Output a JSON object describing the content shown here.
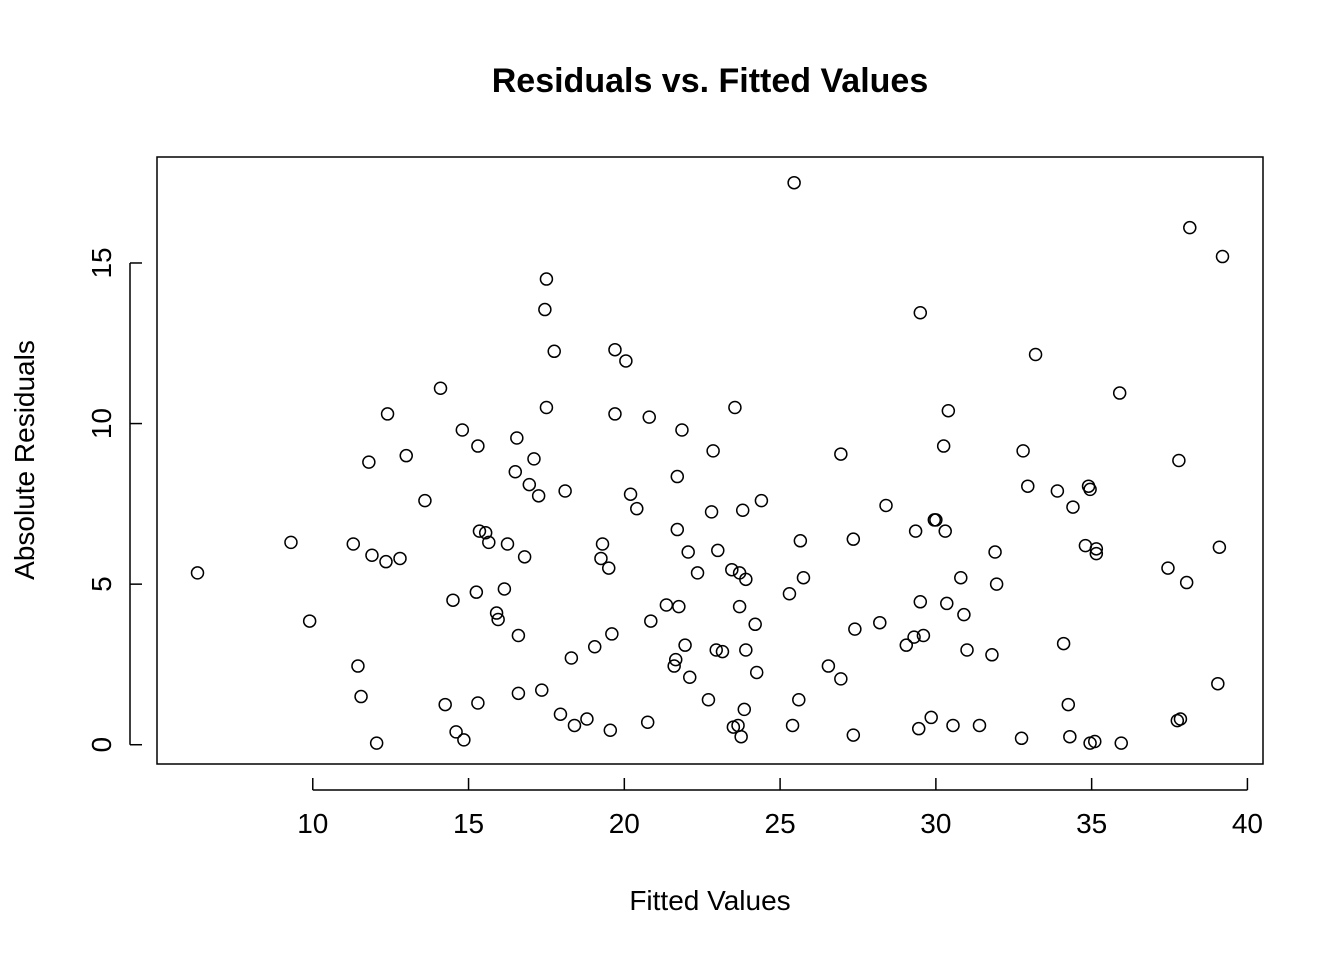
{
  "chart_data": {
    "type": "scatter",
    "title": "Residuals vs. Fitted Values",
    "xlabel": "Fitted Values",
    "ylabel": "Absolute Residuals",
    "xlim": [
      5,
      40.5
    ],
    "ylim": [
      -0.6,
      18.3
    ],
    "xticks": [
      10,
      15,
      20,
      25,
      30,
      35,
      40
    ],
    "yticks": [
      0,
      5,
      10,
      15
    ],
    "grid": false,
    "marker": "open-circle",
    "points": [
      [
        6.3,
        5.35
      ],
      [
        9.3,
        6.3
      ],
      [
        9.9,
        3.85
      ],
      [
        11.3,
        6.25
      ],
      [
        11.45,
        2.45
      ],
      [
        11.55,
        1.5
      ],
      [
        11.8,
        8.8
      ],
      [
        11.9,
        5.9
      ],
      [
        12.05,
        0.05
      ],
      [
        12.35,
        5.7
      ],
      [
        12.4,
        10.3
      ],
      [
        12.8,
        5.8
      ],
      [
        13.0,
        9.0
      ],
      [
        13.6,
        7.6
      ],
      [
        14.1,
        11.1
      ],
      [
        14.25,
        1.25
      ],
      [
        14.5,
        4.5
      ],
      [
        14.6,
        0.4
      ],
      [
        14.8,
        9.8
      ],
      [
        14.85,
        0.15
      ],
      [
        15.25,
        4.75
      ],
      [
        15.3,
        9.3
      ],
      [
        15.3,
        1.3
      ],
      [
        15.35,
        6.65
      ],
      [
        15.55,
        6.6
      ],
      [
        15.65,
        6.3
      ],
      [
        15.9,
        4.1
      ],
      [
        15.95,
        3.9
      ],
      [
        16.15,
        4.85
      ],
      [
        16.25,
        6.25
      ],
      [
        16.5,
        8.5
      ],
      [
        16.55,
        9.55
      ],
      [
        16.6,
        3.4
      ],
      [
        16.6,
        1.6
      ],
      [
        16.8,
        5.85
      ],
      [
        16.95,
        8.1
      ],
      [
        17.1,
        8.9
      ],
      [
        17.25,
        7.75
      ],
      [
        17.35,
        1.7
      ],
      [
        17.45,
        13.55
      ],
      [
        17.5,
        14.5
      ],
      [
        17.5,
        10.5
      ],
      [
        17.75,
        12.25
      ],
      [
        17.95,
        0.95
      ],
      [
        18.1,
        7.9
      ],
      [
        18.3,
        2.7
      ],
      [
        18.4,
        0.6
      ],
      [
        18.8,
        0.8
      ],
      [
        19.05,
        3.05
      ],
      [
        19.25,
        5.8
      ],
      [
        19.3,
        6.25
      ],
      [
        19.5,
        5.5
      ],
      [
        19.55,
        0.45
      ],
      [
        19.6,
        3.45
      ],
      [
        19.7,
        12.3
      ],
      [
        19.7,
        10.3
      ],
      [
        20.05,
        11.95
      ],
      [
        20.2,
        7.8
      ],
      [
        20.4,
        7.35
      ],
      [
        20.75,
        0.7
      ],
      [
        20.8,
        10.2
      ],
      [
        20.85,
        3.85
      ],
      [
        21.35,
        4.35
      ],
      [
        21.6,
        2.45
      ],
      [
        21.65,
        2.65
      ],
      [
        21.7,
        6.7
      ],
      [
        21.7,
        8.35
      ],
      [
        21.75,
        4.3
      ],
      [
        21.85,
        9.8
      ],
      [
        21.95,
        3.1
      ],
      [
        22.05,
        6.0
      ],
      [
        22.1,
        2.1
      ],
      [
        22.35,
        5.35
      ],
      [
        22.7,
        1.4
      ],
      [
        22.8,
        7.25
      ],
      [
        22.85,
        9.15
      ],
      [
        22.95,
        2.95
      ],
      [
        23.0,
        6.05
      ],
      [
        23.15,
        2.9
      ],
      [
        23.45,
        5.45
      ],
      [
        23.5,
        0.55
      ],
      [
        23.55,
        10.5
      ],
      [
        23.65,
        0.6
      ],
      [
        23.7,
        5.35
      ],
      [
        23.7,
        4.3
      ],
      [
        23.75,
        0.25
      ],
      [
        23.8,
        7.3
      ],
      [
        23.85,
        1.1
      ],
      [
        23.9,
        5.15
      ],
      [
        23.9,
        2.95
      ],
      [
        24.2,
        3.75
      ],
      [
        24.25,
        2.25
      ],
      [
        24.4,
        7.6
      ],
      [
        25.3,
        4.7
      ],
      [
        25.4,
        0.6
      ],
      [
        25.45,
        17.5
      ],
      [
        25.6,
        1.4
      ],
      [
        25.65,
        6.35
      ],
      [
        25.75,
        5.2
      ],
      [
        26.55,
        2.45
      ],
      [
        26.95,
        2.05
      ],
      [
        26.95,
        9.05
      ],
      [
        27.35,
        0.3
      ],
      [
        27.35,
        6.4
      ],
      [
        27.4,
        3.6
      ],
      [
        28.2,
        3.8
      ],
      [
        28.4,
        7.45
      ],
      [
        29.05,
        3.1
      ],
      [
        29.3,
        3.35
      ],
      [
        29.35,
        6.65
      ],
      [
        29.45,
        0.5
      ],
      [
        29.5,
        13.45
      ],
      [
        29.5,
        4.45
      ],
      [
        29.6,
        3.4
      ],
      [
        29.85,
        0.85
      ],
      [
        29.95,
        7.0
      ],
      [
        30.0,
        7.0
      ],
      [
        30.25,
        9.3
      ],
      [
        30.3,
        6.65
      ],
      [
        30.35,
        4.4
      ],
      [
        30.4,
        10.4
      ],
      [
        30.55,
        0.6
      ],
      [
        30.8,
        5.2
      ],
      [
        30.9,
        4.05
      ],
      [
        31.0,
        2.95
      ],
      [
        31.4,
        0.6
      ],
      [
        31.8,
        2.8
      ],
      [
        31.9,
        6.0
      ],
      [
        31.95,
        5.0
      ],
      [
        32.75,
        0.2
      ],
      [
        32.8,
        9.15
      ],
      [
        32.95,
        8.05
      ],
      [
        33.2,
        12.15
      ],
      [
        33.9,
        7.9
      ],
      [
        34.1,
        3.15
      ],
      [
        34.25,
        1.25
      ],
      [
        34.3,
        0.25
      ],
      [
        34.4,
        7.4
      ],
      [
        34.8,
        6.2
      ],
      [
        34.9,
        8.05
      ],
      [
        34.95,
        7.95
      ],
      [
        34.95,
        0.05
      ],
      [
        35.1,
        0.1
      ],
      [
        35.15,
        6.1
      ],
      [
        35.15,
        5.95
      ],
      [
        35.9,
        10.95
      ],
      [
        35.95,
        0.05
      ],
      [
        37.45,
        5.5
      ],
      [
        37.75,
        0.75
      ],
      [
        37.8,
        8.85
      ],
      [
        37.85,
        0.8
      ],
      [
        38.05,
        5.05
      ],
      [
        38.15,
        16.1
      ],
      [
        39.05,
        1.9
      ],
      [
        39.1,
        6.15
      ],
      [
        39.2,
        15.2
      ]
    ]
  }
}
